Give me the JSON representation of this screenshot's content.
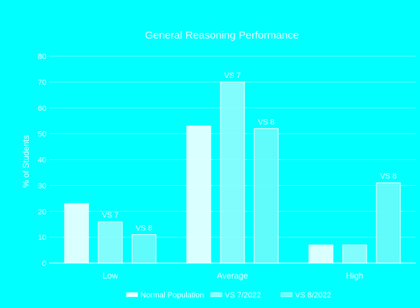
{
  "chart_data": {
    "type": "bar",
    "title": "General Reasoning Performance",
    "ylabel": "% of Students",
    "xlabel": "",
    "ylim": [
      0,
      80
    ],
    "yticks": [
      0,
      10,
      20,
      30,
      40,
      50,
      60,
      70,
      80
    ],
    "categories": [
      "Low",
      "Average",
      "High"
    ],
    "series": [
      {
        "name": "Normal Population",
        "values": [
          23,
          53,
          7
        ],
        "labels": [
          "",
          "",
          ""
        ],
        "color": "#f2ffff"
      },
      {
        "name": "VS 7/2022",
        "values": [
          16,
          70,
          7
        ],
        "labels": [
          "VS 7",
          "VS 7",
          ""
        ],
        "color": "#8ffdfd"
      },
      {
        "name": "VS 8/2022",
        "values": [
          11,
          52,
          31
        ],
        "labels": [
          "VS 8",
          "VS 8",
          "VS 8"
        ],
        "color": "#6afbfb"
      }
    ],
    "grid": true,
    "legend_position": "bottom"
  }
}
